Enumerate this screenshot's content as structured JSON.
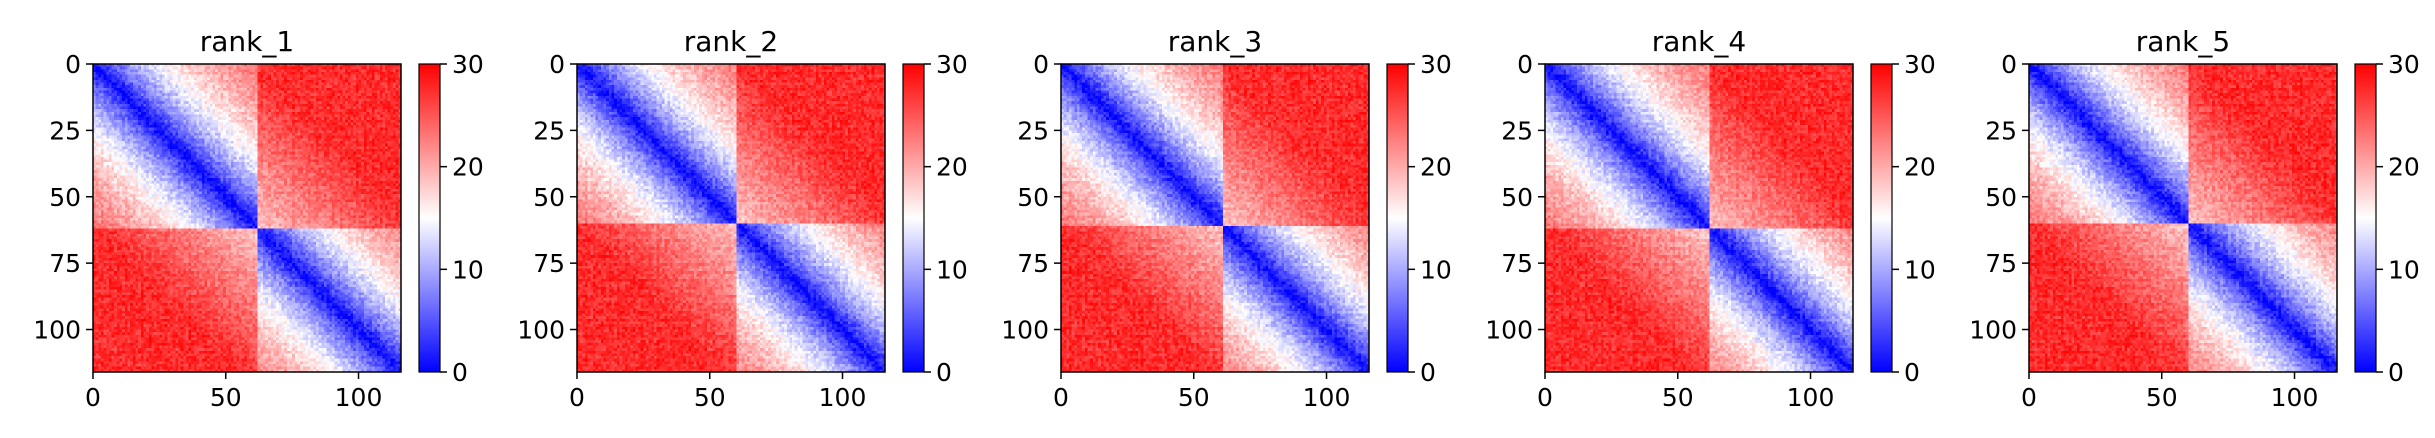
{
  "chart_data": [
    {
      "type": "heatmap",
      "title": "rank_1",
      "xlim": [
        0,
        116
      ],
      "ylim": [
        116,
        0
      ],
      "xticks": [
        0,
        50,
        100
      ],
      "yticks": [
        0,
        25,
        50,
        75,
        100
      ],
      "colorbar": {
        "min": 0,
        "max": 30,
        "ticks": [
          0,
          10,
          20,
          30
        ],
        "colormap": "bwr"
      },
      "structure": {
        "domain_boundary": 62,
        "values_description": "pairwise distance matrix, two low-distance diagonal domains"
      }
    },
    {
      "type": "heatmap",
      "title": "rank_2",
      "xlim": [
        0,
        116
      ],
      "ylim": [
        116,
        0
      ],
      "xticks": [
        0,
        50,
        100
      ],
      "yticks": [
        0,
        25,
        50,
        75,
        100
      ],
      "colorbar": {
        "min": 0,
        "max": 30,
        "ticks": [
          0,
          10,
          20,
          30
        ],
        "colormap": "bwr"
      },
      "structure": {
        "domain_boundary": 60,
        "values_description": "pairwise distance matrix, two low-distance diagonal domains"
      }
    },
    {
      "type": "heatmap",
      "title": "rank_3",
      "xlim": [
        0,
        116
      ],
      "ylim": [
        116,
        0
      ],
      "xticks": [
        0,
        50,
        100
      ],
      "yticks": [
        0,
        25,
        50,
        75,
        100
      ],
      "colorbar": {
        "min": 0,
        "max": 30,
        "ticks": [
          0,
          10,
          20,
          30
        ],
        "colormap": "bwr"
      },
      "structure": {
        "domain_boundary": 61,
        "values_description": "pairwise distance matrix, two low-distance diagonal domains"
      }
    },
    {
      "type": "heatmap",
      "title": "rank_4",
      "xlim": [
        0,
        116
      ],
      "ylim": [
        116,
        0
      ],
      "xticks": [
        0,
        50,
        100
      ],
      "yticks": [
        0,
        25,
        50,
        75,
        100
      ],
      "colorbar": {
        "min": 0,
        "max": 30,
        "ticks": [
          0,
          10,
          20,
          30
        ],
        "colormap": "bwr"
      },
      "structure": {
        "domain_boundary": 62,
        "values_description": "pairwise distance matrix, two low-distance diagonal domains"
      }
    },
    {
      "type": "heatmap",
      "title": "rank_5",
      "xlim": [
        0,
        116
      ],
      "ylim": [
        116,
        0
      ],
      "xticks": [
        0,
        50,
        100
      ],
      "yticks": [
        0,
        25,
        50,
        75,
        100
      ],
      "colorbar": {
        "min": 0,
        "max": 30,
        "ticks": [
          0,
          10,
          20,
          30
        ],
        "colormap": "bwr"
      },
      "structure": {
        "domain_boundary": 60,
        "values_description": "pairwise distance matrix, two low-distance diagonal domains"
      }
    }
  ]
}
